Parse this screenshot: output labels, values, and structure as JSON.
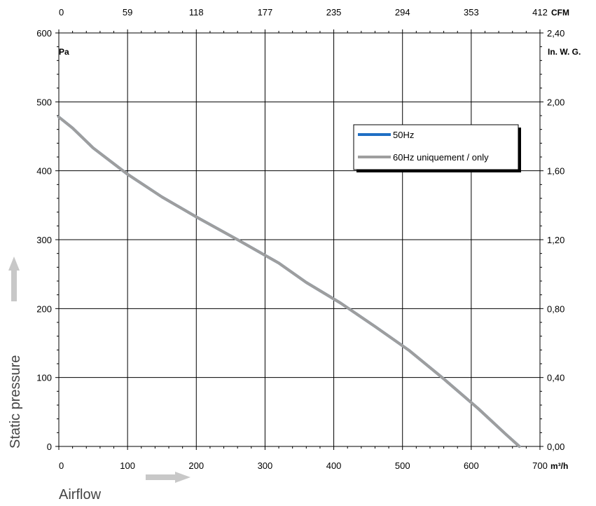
{
  "chart_data": {
    "type": "line",
    "x": {
      "label": "Airflow",
      "unit": "m³/h",
      "range": [
        0,
        700
      ],
      "ticks": [
        "0",
        "100",
        "200",
        "300",
        "400",
        "500",
        "600",
        "700"
      ]
    },
    "x_top": {
      "unit": "CFM",
      "ticks": [
        "0",
        "59",
        "118",
        "177",
        "235",
        "294",
        "353",
        "412"
      ]
    },
    "y": {
      "label": "Static pressure",
      "unit": "Pa",
      "range": [
        0,
        600
      ],
      "ticks": [
        "0",
        "100",
        "200",
        "300",
        "400",
        "500",
        "600"
      ]
    },
    "y_right": {
      "unit": "In. W. G.",
      "ticks": [
        "0,00",
        "0,40",
        "0,80",
        "1,20",
        "1,60",
        "2,00",
        "2,40"
      ]
    },
    "grid": true,
    "legend_position": "top-right",
    "series": [
      {
        "name": "50Hz",
        "color": "#1f6fc4",
        "points": [
          [
            0,
            478
          ],
          [
            20,
            462
          ],
          [
            50,
            433
          ],
          [
            100,
            395
          ],
          [
            150,
            362
          ],
          [
            200,
            333
          ],
          [
            260,
            300
          ],
          [
            320,
            266
          ],
          [
            360,
            238
          ],
          [
            410,
            208
          ],
          [
            460,
            174
          ],
          [
            510,
            139
          ],
          [
            560,
            98
          ],
          [
            610,
            55
          ],
          [
            650,
            18
          ],
          [
            670,
            0
          ]
        ]
      },
      {
        "name": "60Hz uniquement / only",
        "color": "#9e9e9e",
        "points": [
          [
            0,
            478
          ],
          [
            20,
            462
          ],
          [
            50,
            433
          ],
          [
            100,
            395
          ],
          [
            150,
            362
          ],
          [
            200,
            333
          ],
          [
            260,
            300
          ],
          [
            320,
            266
          ],
          [
            360,
            238
          ],
          [
            410,
            208
          ],
          [
            460,
            174
          ],
          [
            510,
            139
          ],
          [
            560,
            98
          ],
          [
            610,
            55
          ],
          [
            650,
            18
          ],
          [
            670,
            0
          ]
        ]
      }
    ]
  }
}
